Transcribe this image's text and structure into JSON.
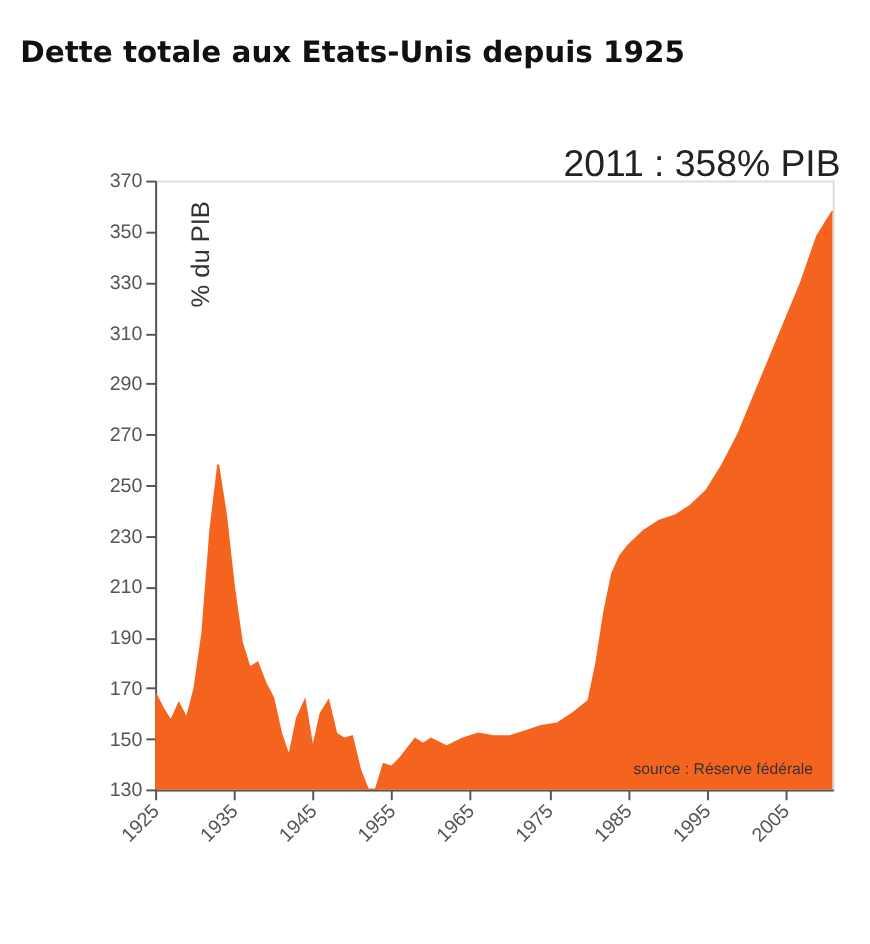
{
  "chart_data": {
    "type": "area",
    "title": "Dette totale aux Etats-Unis depuis 1925",
    "ylabel": "% du PIB",
    "x": [
      1925,
      1926,
      1927,
      1928,
      1929,
      1930,
      1931,
      1932,
      1933,
      1934,
      1935,
      1936,
      1937,
      1938,
      1939,
      1940,
      1941,
      1942,
      1943,
      1944,
      1945,
      1946,
      1947,
      1948,
      1949,
      1950,
      1951,
      1952,
      1953,
      1954,
      1955,
      1956,
      1957,
      1958,
      1959,
      1960,
      1962,
      1964,
      1966,
      1968,
      1970,
      1972,
      1974,
      1976,
      1978,
      1980,
      1981,
      1982,
      1983,
      1984,
      1985,
      1987,
      1989,
      1991,
      1993,
      1995,
      1997,
      1999,
      2001,
      2003,
      2005,
      2007,
      2009,
      2011
    ],
    "series": [
      {
        "color": "#f5641e",
        "values": [
          168,
          162,
          157,
          164,
          158,
          170,
          192,
          232,
          258,
          238,
          210,
          188,
          178,
          180,
          172,
          166,
          152,
          143,
          158,
          165,
          146,
          160,
          165,
          152,
          150,
          151,
          138,
          130,
          130,
          140,
          139,
          142,
          146,
          150,
          148,
          150,
          147,
          150,
          152,
          151,
          151,
          153,
          155,
          156,
          160,
          165,
          180,
          200,
          215,
          222,
          226,
          232,
          236,
          238,
          242,
          248,
          258,
          270,
          285,
          300,
          315,
          330,
          348,
          358
        ]
      }
    ],
    "xlim": [
      1925,
      2011
    ],
    "xticks": [
      1925,
      1935,
      1945,
      1955,
      1965,
      1975,
      1985,
      1995,
      2005
    ],
    "ylim": [
      130,
      370
    ],
    "yticks": [
      130,
      150,
      170,
      190,
      210,
      230,
      250,
      270,
      290,
      310,
      330,
      350,
      370
    ],
    "grid": false,
    "legend": false,
    "annotations": [
      {
        "text": "2011 : 358% PIB",
        "x": 2011,
        "y": 358
      },
      "source : Réserve fédérale"
    ]
  }
}
